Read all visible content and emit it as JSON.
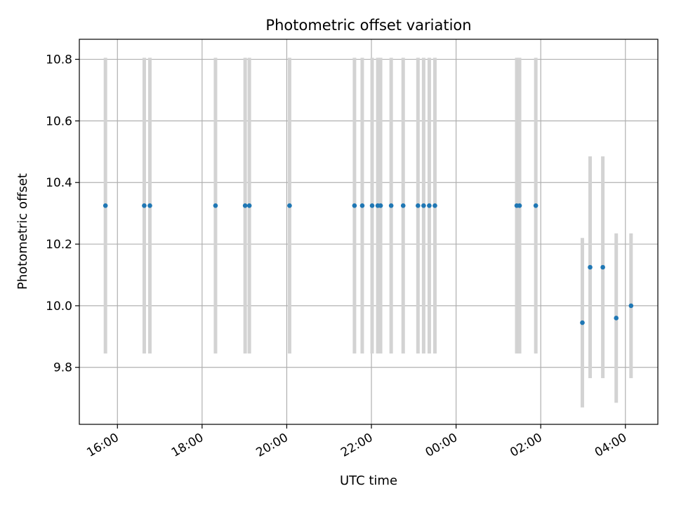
{
  "chart_data": {
    "type": "scatter",
    "title": "Photometric offset variation",
    "xlabel": "UTC time",
    "ylabel": "Photometric offset",
    "x_axis": "time",
    "xlim": [
      "15:06",
      "04:46"
    ],
    "ylim": [
      9.615,
      10.865
    ],
    "x_ticks": [
      "16:00",
      "18:00",
      "20:00",
      "22:00",
      "00:00",
      "02:00",
      "04:00"
    ],
    "y_ticks": [
      9.8,
      10.0,
      10.2,
      10.4,
      10.6,
      10.8
    ],
    "grid": true,
    "marker_color": "#1f77b4",
    "errorbar_color": "#d3d3d3",
    "series": [
      {
        "points": [
          {
            "x": "15:43",
            "y": 10.325,
            "err": 0.48
          },
          {
            "x": "16:38",
            "y": 10.325,
            "err": 0.48
          },
          {
            "x": "16:46",
            "y": 10.325,
            "err": 0.48
          },
          {
            "x": "18:19",
            "y": 10.325,
            "err": 0.48
          },
          {
            "x": "19:01",
            "y": 10.325,
            "err": 0.48
          },
          {
            "x": "19:07",
            "y": 10.325,
            "err": 0.48
          },
          {
            "x": "20:04",
            "y": 10.325,
            "err": 0.48
          },
          {
            "x": "21:36",
            "y": 10.325,
            "err": 0.48
          },
          {
            "x": "21:47",
            "y": 10.325,
            "err": 0.48
          },
          {
            "x": "22:01",
            "y": 10.325,
            "err": 0.48
          },
          {
            "x": "22:09",
            "y": 10.325,
            "err": 0.48
          },
          {
            "x": "22:13",
            "y": 10.325,
            "err": 0.48
          },
          {
            "x": "22:28",
            "y": 10.325,
            "err": 0.48
          },
          {
            "x": "22:45",
            "y": 10.325,
            "err": 0.48
          },
          {
            "x": "23:06",
            "y": 10.325,
            "err": 0.48
          },
          {
            "x": "23:14",
            "y": 10.325,
            "err": 0.48
          },
          {
            "x": "23:22",
            "y": 10.325,
            "err": 0.48
          },
          {
            "x": "23:30",
            "y": 10.325,
            "err": 0.48
          },
          {
            "x": "01:26",
            "y": 10.325,
            "err": 0.48
          },
          {
            "x": "01:30",
            "y": 10.325,
            "err": 0.48
          },
          {
            "x": "01:53",
            "y": 10.325,
            "err": 0.48
          },
          {
            "x": "02:59",
            "y": 9.945,
            "err": 0.275
          },
          {
            "x": "03:10",
            "y": 10.125,
            "err": 0.36
          },
          {
            "x": "03:28",
            "y": 10.125,
            "err": 0.36
          },
          {
            "x": "03:47",
            "y": 9.96,
            "err": 0.275
          },
          {
            "x": "04:08",
            "y": 10.0,
            "err": 0.235
          }
        ]
      }
    ]
  }
}
